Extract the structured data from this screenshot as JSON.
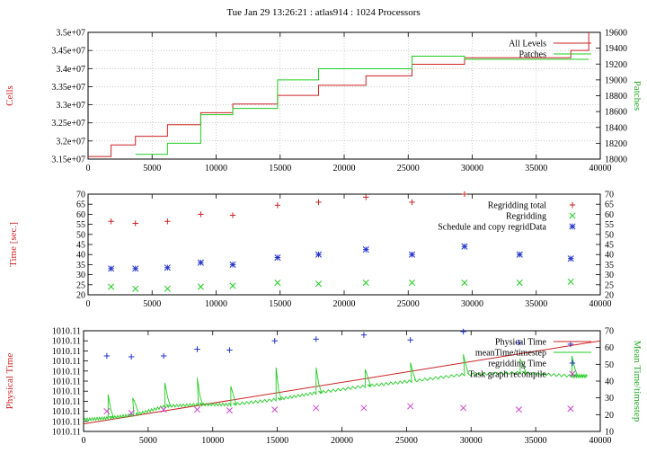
{
  "title": "Tue Jan 29 13:26:21 : atlas914 : 1024 Processors",
  "chart_data": [
    {
      "type": "line",
      "xlim": [
        0,
        40000
      ],
      "xticks": [
        "0",
        "5000",
        "10000",
        "15000",
        "20000",
        "25000",
        "30000",
        "35000",
        "40000"
      ],
      "ylabel": "Cells",
      "ylim": [
        31500000,
        35000000
      ],
      "yticks": [
        "3.15e+07",
        "3.2e+07",
        "3.25e+07",
        "3.3e+07",
        "3.35e+07",
        "3.4e+07",
        "3.45e+07",
        "3.5e+07"
      ],
      "y2label": "Patches",
      "y2lim": [
        18000,
        19600
      ],
      "y2ticks": [
        "18000",
        "18200",
        "18400",
        "18600",
        "18800",
        "19000",
        "19200",
        "19400",
        "19600"
      ],
      "grid": true,
      "legend": "top-right",
      "series": [
        {
          "name": "All Levels",
          "axis": "left",
          "step": true,
          "color": "#cc2222",
          "x": [
            0,
            1800,
            3700,
            6200,
            8800,
            11300,
            14800,
            18000,
            21700,
            25300,
            29400,
            37700,
            39100
          ],
          "y": [
            31570000,
            31890000,
            32130000,
            32450000,
            32780000,
            33020000,
            33260000,
            33540000,
            33800000,
            34120000,
            34300000,
            34500000,
            35000000
          ]
        },
        {
          "name": "Patches",
          "axis": "right",
          "step": true,
          "color": "#22cc22",
          "x": [
            3700,
            6200,
            8800,
            11300,
            14800,
            18000,
            25300,
            29400,
            39100
          ],
          "y": [
            18060,
            18200,
            18560,
            18640,
            19000,
            19140,
            19300,
            19260,
            19260
          ]
        }
      ]
    },
    {
      "type": "scatter",
      "xlim": [
        0,
        40000
      ],
      "xticks": [
        "0",
        "5000",
        "10000",
        "15000",
        "20000",
        "25000",
        "30000",
        "35000",
        "40000"
      ],
      "ylabel": "Time [sec.]",
      "ylim": [
        20,
        70
      ],
      "yticks": [
        "20",
        "25",
        "30",
        "35",
        "40",
        "45",
        "50",
        "55",
        "60",
        "65",
        "70"
      ],
      "y2lim": [
        20,
        70
      ],
      "y2ticks": [
        "20",
        "25",
        "30",
        "35",
        "40",
        "45",
        "50",
        "55",
        "60",
        "65",
        "70"
      ],
      "grid": false,
      "legend": "top-right",
      "series": [
        {
          "name": "Regridding total",
          "marker": "+",
          "color": "#cc2222",
          "x": [
            1800,
            3700,
            6200,
            8800,
            11300,
            14800,
            18000,
            21700,
            25300,
            29400
          ],
          "y": [
            56.5,
            55.5,
            56.5,
            60,
            59.5,
            64.5,
            66,
            68.5,
            66,
            70
          ]
        },
        {
          "name": "Regridding",
          "marker": "x",
          "color": "#22cc22",
          "x": [
            1800,
            3700,
            6200,
            8800,
            11300,
            14800,
            18000,
            21700,
            25300,
            29400,
            33700,
            37700
          ],
          "y": [
            24,
            23,
            23,
            24,
            24.5,
            26,
            25.5,
            26,
            26,
            26,
            26,
            26.5
          ]
        },
        {
          "name": "Schedule and copy regridData",
          "marker": "*",
          "color": "#2233cc",
          "x": [
            1800,
            3700,
            6200,
            8800,
            11300,
            14800,
            18000,
            21700,
            25300,
            29400,
            33700,
            37700
          ],
          "y": [
            33,
            33,
            33.5,
            36,
            35,
            38.5,
            40,
            42.5,
            40,
            44,
            40,
            38
          ]
        }
      ]
    },
    {
      "type": "line",
      "xlim": [
        0,
        40000
      ],
      "xticks": [
        "0",
        "5000",
        "10000",
        "15000",
        "20000",
        "25000",
        "30000",
        "35000",
        "40000"
      ],
      "ylabel": "Physical Time",
      "yticks": [
        "1010.11",
        "1010.11",
        "1010.11",
        "1010.11",
        "1010.11",
        "1010.11",
        "1010.11",
        "1010.11",
        "1010.11",
        "1010.11",
        "1010.11"
      ],
      "y2label": "Mean Time/timestep",
      "y2lim": [
        10,
        70
      ],
      "y2ticks": [
        "10",
        "20",
        "30",
        "40",
        "50",
        "60",
        "70"
      ],
      "grid": false,
      "legend": "top-right",
      "series": [
        {
          "name": "Physical Time",
          "axis": "right",
          "color": "#cc2222",
          "x": [
            0,
            40000
          ],
          "y": [
            14.5,
            64
          ]
        },
        {
          "name": "meanTime/timestep",
          "axis": "right",
          "color": "#22cc22",
          "base": [
            [
              0,
              17
            ],
            [
              1900,
              18
            ],
            [
              4000,
              20
            ],
            [
              6300,
              25
            ],
            [
              8900,
              26
            ],
            [
              11400,
              26
            ],
            [
              14900,
              29
            ],
            [
              18000,
              33
            ],
            [
              21800,
              37
            ],
            [
              25400,
              40
            ],
            [
              29500,
              44
            ],
            [
              33800,
              45
            ],
            [
              37800,
              43
            ],
            [
              39000,
              43
            ]
          ],
          "spikes": [
            [
              1900,
              32
            ],
            [
              3800,
              30
            ],
            [
              6300,
              39
            ],
            [
              8800,
              42
            ],
            [
              11400,
              37
            ],
            [
              14900,
              48
            ],
            [
              18000,
              48
            ],
            [
              21800,
              47
            ],
            [
              25300,
              51
            ],
            [
              29400,
              56
            ],
            [
              33800,
              53
            ],
            [
              37800,
              55
            ]
          ]
        },
        {
          "name": "regridding Time",
          "axis": "right",
          "marker": "+",
          "color": "#2233cc",
          "x": [
            1800,
            3700,
            6200,
            8800,
            11300,
            14800,
            18000,
            21700,
            25300,
            29400,
            33700,
            37700
          ],
          "y": [
            55,
            54.5,
            55,
            59,
            58.5,
            64,
            65,
            67.5,
            64.5,
            69.5,
            63,
            62
          ]
        },
        {
          "name": "Task graph recompile",
          "axis": "right",
          "marker": "x",
          "color": "#cc44cc",
          "x": [
            1800,
            3700,
            6200,
            8800,
            11300,
            14800,
            18000,
            21700,
            25300,
            29400,
            33700,
            37700
          ],
          "y": [
            22,
            21,
            23,
            23,
            22.5,
            23,
            24,
            24,
            25,
            24,
            23,
            23.5
          ]
        }
      ]
    }
  ]
}
